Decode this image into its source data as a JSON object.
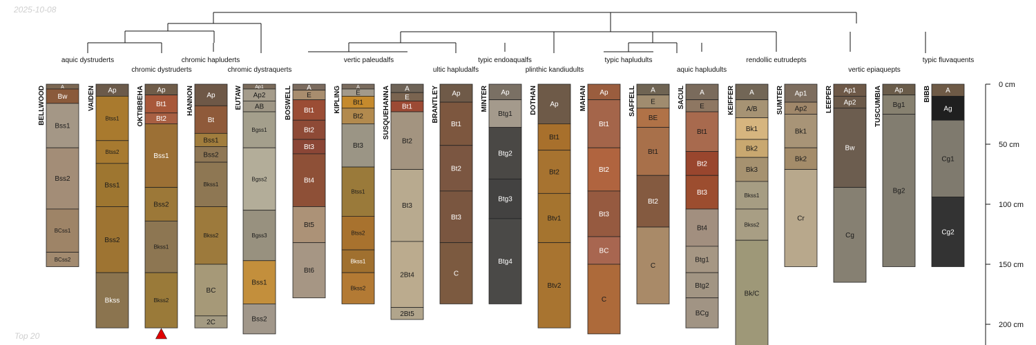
{
  "date_label": "2025-10-08",
  "footer_label": "Top 20",
  "depth_axis": {
    "ticks": [
      0,
      50,
      100,
      150,
      200
    ],
    "unit": "cm",
    "max_depth": 218
  },
  "chart_data": {
    "type": "soil-profile-sketch",
    "profiles": [
      {
        "name": "BELLWOOD",
        "horizons": [
          {
            "name": "A",
            "top": 0,
            "bottom": 4,
            "color": "#7b6752"
          },
          {
            "name": "Bw",
            "top": 4,
            "bottom": 16,
            "color": "#8a5a3b"
          },
          {
            "name": "Bss1",
            "top": 16,
            "bottom": 53,
            "color": "#a49786"
          },
          {
            "name": "Bss2",
            "top": 53,
            "bottom": 104,
            "color": "#a38d77"
          },
          {
            "name": "BCss1",
            "top": 104,
            "bottom": 140,
            "color": "#9e8467"
          },
          {
            "name": "BCss2",
            "top": 140,
            "bottom": 152,
            "color": "#a28a6f"
          }
        ]
      },
      {
        "name": "VAIDEN",
        "horizons": [
          {
            "name": "Ap",
            "top": 0,
            "bottom": 10,
            "color": "#6b5a4a"
          },
          {
            "name": "Btss1",
            "top": 10,
            "bottom": 47,
            "color": "#a97a2e"
          },
          {
            "name": "Btss2",
            "top": 47,
            "bottom": 66,
            "color": "#a77a30"
          },
          {
            "name": "Bss1",
            "top": 66,
            "bottom": 102,
            "color": "#9e7630"
          },
          {
            "name": "Bss2",
            "top": 102,
            "bottom": 157,
            "color": "#9e7432"
          },
          {
            "name": "Bkss",
            "top": 157,
            "bottom": 203,
            "color": "#8b744f"
          }
        ]
      },
      {
        "name": "OKTIBBEHA",
        "horizons": [
          {
            "name": "Ap",
            "top": 0,
            "bottom": 9,
            "color": "#6f5c49"
          },
          {
            "name": "Bt1",
            "top": 9,
            "bottom": 24,
            "color": "#a8583a"
          },
          {
            "name": "Bt2",
            "top": 24,
            "bottom": 33,
            "color": "#a85f42"
          },
          {
            "name": "Bss1",
            "top": 33,
            "bottom": 86,
            "color": "#9c7035"
          },
          {
            "name": "Bss2",
            "top": 86,
            "bottom": 114,
            "color": "#9c7838"
          },
          {
            "name": "Bkss1",
            "top": 114,
            "bottom": 157,
            "color": "#8d7652"
          },
          {
            "name": "Bkss2",
            "top": 157,
            "bottom": 203,
            "color": "#9a7a39"
          }
        ]
      },
      {
        "name": "HANNON",
        "horizons": [
          {
            "name": "Ap",
            "top": 0,
            "bottom": 18,
            "color": "#6e5847"
          },
          {
            "name": "Bt",
            "top": 18,
            "bottom": 41,
            "color": "#8f5a3a"
          },
          {
            "name": "Bss1",
            "top": 41,
            "bottom": 52,
            "color": "#a17d3d"
          },
          {
            "name": "Bss2",
            "top": 52,
            "bottom": 65,
            "color": "#8f7755"
          },
          {
            "name": "Bkss1",
            "top": 65,
            "bottom": 102,
            "color": "#8e7753"
          },
          {
            "name": "Bkss2",
            "top": 102,
            "bottom": 150,
            "color": "#9d7a3c"
          },
          {
            "name": "BC",
            "top": 150,
            "bottom": 193,
            "color": "#a69978"
          },
          {
            "name": "2C",
            "top": 193,
            "bottom": 203,
            "color": "#a39a82"
          }
        ]
      },
      {
        "name": "EUTAW",
        "horizons": [
          {
            "name": "Ap1",
            "top": 0,
            "bottom": 4,
            "color": "#7a6b5b"
          },
          {
            "name": "Ap2",
            "top": 4,
            "bottom": 14,
            "color": "#a59c8b"
          },
          {
            "name": "AB",
            "top": 14,
            "bottom": 23,
            "color": "#9f9786"
          },
          {
            "name": "Bgss1",
            "top": 23,
            "bottom": 53,
            "color": "#a49f8c"
          },
          {
            "name": "Bgss2",
            "top": 53,
            "bottom": 105,
            "color": "#b3ad99"
          },
          {
            "name": "Bgss3",
            "top": 105,
            "bottom": 147,
            "color": "#98917f"
          },
          {
            "name": "Bss1",
            "top": 147,
            "bottom": 183,
            "color": "#c38f3c"
          },
          {
            "name": "Bss2",
            "top": 183,
            "bottom": 208,
            "color": "#a1978a"
          }
        ]
      },
      {
        "name": "BOSWELL",
        "horizons": [
          {
            "name": "A",
            "top": 0,
            "bottom": 5,
            "color": "#7b6b5e"
          },
          {
            "name": "E",
            "top": 5,
            "bottom": 13,
            "color": "#a88d6e"
          },
          {
            "name": "Bt1",
            "top": 13,
            "bottom": 30,
            "color": "#9b4d35"
          },
          {
            "name": "Bt2",
            "top": 30,
            "bottom": 46,
            "color": "#8e4a36"
          },
          {
            "name": "Bt3",
            "top": 46,
            "bottom": 58,
            "color": "#8b4636"
          },
          {
            "name": "Bt4",
            "top": 58,
            "bottom": 102,
            "color": "#8e5037"
          },
          {
            "name": "Bt5",
            "top": 102,
            "bottom": 132,
            "color": "#ac9277"
          },
          {
            "name": "Bt6",
            "top": 132,
            "bottom": 178,
            "color": "#a69684"
          }
        ]
      },
      {
        "name": "KIPLING",
        "horizons": [
          {
            "name": "A",
            "top": 0,
            "bottom": 4,
            "color": "#7a6c5e"
          },
          {
            "name": "E",
            "top": 4,
            "bottom": 10,
            "color": "#a39a8b"
          },
          {
            "name": "Bt1",
            "top": 10,
            "bottom": 20,
            "color": "#c58a2d"
          },
          {
            "name": "Bt2",
            "top": 20,
            "bottom": 33,
            "color": "#b28a4e"
          },
          {
            "name": "Bt3",
            "top": 33,
            "bottom": 69,
            "color": "#9b9585"
          },
          {
            "name": "Btss1",
            "top": 69,
            "bottom": 110,
            "color": "#9a7a3a"
          },
          {
            "name": "Btss2",
            "top": 110,
            "bottom": 138,
            "color": "#a8722e"
          },
          {
            "name": "Bkss1",
            "top": 138,
            "bottom": 157,
            "color": "#a0702f"
          },
          {
            "name": "Bkss2",
            "top": 157,
            "bottom": 183,
            "color": "#b37a34"
          }
        ]
      },
      {
        "name": "SUSQUEHANNA",
        "horizons": [
          {
            "name": "A",
            "top": 0,
            "bottom": 7,
            "color": "#6e6357"
          },
          {
            "name": "E",
            "top": 7,
            "bottom": 14,
            "color": "#7a6450"
          },
          {
            "name": "Bt1",
            "top": 14,
            "bottom": 23,
            "color": "#9c4a34"
          },
          {
            "name": "Bt2",
            "top": 23,
            "bottom": 71,
            "color": "#a39480"
          },
          {
            "name": "Bt3",
            "top": 71,
            "bottom": 131,
            "color": "#b8aa8f"
          },
          {
            "name": "2Bt4",
            "top": 131,
            "bottom": 186,
            "color": "#bbab8e"
          },
          {
            "name": "2Bt5",
            "top": 186,
            "bottom": 196,
            "color": "#b1a58c"
          }
        ]
      },
      {
        "name": "BRANTLEY",
        "horizons": [
          {
            "name": "Ap",
            "top": 0,
            "bottom": 15,
            "color": "#6f5a48"
          },
          {
            "name": "Bt1",
            "top": 15,
            "bottom": 51,
            "color": "#7d573f"
          },
          {
            "name": "Bt2",
            "top": 51,
            "bottom": 89,
            "color": "#7b5641"
          },
          {
            "name": "Bt3",
            "top": 89,
            "bottom": 132,
            "color": "#7a5640"
          },
          {
            "name": "C",
            "top": 132,
            "bottom": 183,
            "color": "#7c5a40"
          }
        ]
      },
      {
        "name": "MINTER",
        "horizons": [
          {
            "name": "Ap",
            "top": 0,
            "bottom": 13,
            "color": "#7a7064"
          },
          {
            "name": "Btg1",
            "top": 13,
            "bottom": 36,
            "color": "#a49a8c"
          },
          {
            "name": "Btg2",
            "top": 36,
            "bottom": 79,
            "color": "#4a4845"
          },
          {
            "name": "Btg3",
            "top": 79,
            "bottom": 112,
            "color": "#434241"
          },
          {
            "name": "Btg4",
            "top": 112,
            "bottom": 183,
            "color": "#4a4947"
          }
        ]
      },
      {
        "name": "DOTHAN",
        "horizons": [
          {
            "name": "Ap",
            "top": 0,
            "bottom": 33,
            "color": "#6e5a48"
          },
          {
            "name": "Bt1",
            "top": 33,
            "bottom": 55,
            "color": "#a8702c"
          },
          {
            "name": "Bt2",
            "top": 55,
            "bottom": 91,
            "color": "#a77330"
          },
          {
            "name": "Btv1",
            "top": 91,
            "bottom": 132,
            "color": "#a5742f"
          },
          {
            "name": "Btv2",
            "top": 132,
            "bottom": 203,
            "color": "#a87430"
          }
        ]
      },
      {
        "name": "MAHAN",
        "horizons": [
          {
            "name": "Ap",
            "top": 0,
            "bottom": 13,
            "color": "#9a5d3e"
          },
          {
            "name": "Bt1",
            "top": 13,
            "bottom": 53,
            "color": "#a4654a"
          },
          {
            "name": "Bt2",
            "top": 53,
            "bottom": 89,
            "color": "#b0643f"
          },
          {
            "name": "Bt3",
            "top": 89,
            "bottom": 127,
            "color": "#965a40"
          },
          {
            "name": "BC",
            "top": 127,
            "bottom": 150,
            "color": "#a86650"
          },
          {
            "name": "C",
            "top": 150,
            "bottom": 208,
            "color": "#ad6a3a"
          }
        ]
      },
      {
        "name": "SAFFELL",
        "horizons": [
          {
            "name": "A",
            "top": 0,
            "bottom": 9,
            "color": "#6f6453"
          },
          {
            "name": "E",
            "top": 9,
            "bottom": 20,
            "color": "#a08c6f"
          },
          {
            "name": "BE",
            "top": 20,
            "bottom": 36,
            "color": "#b07247"
          },
          {
            "name": "Bt1",
            "top": 36,
            "bottom": 76,
            "color": "#a8704a"
          },
          {
            "name": "Bt2",
            "top": 76,
            "bottom": 119,
            "color": "#845a40"
          },
          {
            "name": "C",
            "top": 119,
            "bottom": 183,
            "color": "#a98a68"
          }
        ]
      },
      {
        "name": "SACUL",
        "horizons": [
          {
            "name": "A",
            "top": 0,
            "bottom": 13,
            "color": "#7a6b5c"
          },
          {
            "name": "E",
            "top": 13,
            "bottom": 23,
            "color": "#8e7762"
          },
          {
            "name": "Bt1",
            "top": 23,
            "bottom": 56,
            "color": "#a86a4e"
          },
          {
            "name": "Bt2",
            "top": 56,
            "bottom": 76,
            "color": "#99462e"
          },
          {
            "name": "Bt3",
            "top": 76,
            "bottom": 104,
            "color": "#9c4d2f"
          },
          {
            "name": "Bt4",
            "top": 104,
            "bottom": 135,
            "color": "#a28f7f"
          },
          {
            "name": "Btg1",
            "top": 135,
            "bottom": 157,
            "color": "#a69784"
          },
          {
            "name": "Btg2",
            "top": 157,
            "bottom": 178,
            "color": "#a29583"
          },
          {
            "name": "BCg",
            "top": 178,
            "bottom": 203,
            "color": "#a19484"
          }
        ]
      },
      {
        "name": "KEIFFER",
        "horizons": [
          {
            "name": "A",
            "top": 0,
            "bottom": 13,
            "color": "#726656"
          },
          {
            "name": "A/B",
            "top": 13,
            "bottom": 28,
            "color": "#a69374"
          },
          {
            "name": "Bk1",
            "top": 28,
            "bottom": 46,
            "color": "#d6b57f"
          },
          {
            "name": "Bk2",
            "top": 46,
            "bottom": 61,
            "color": "#c9a870"
          },
          {
            "name": "Bk3",
            "top": 61,
            "bottom": 81,
            "color": "#a69270"
          },
          {
            "name": "Bkss1",
            "top": 81,
            "bottom": 104,
            "color": "#a69d83"
          },
          {
            "name": "Bkss2",
            "top": 104,
            "bottom": 130,
            "color": "#a89e84"
          },
          {
            "name": "Bk/C",
            "top": 130,
            "bottom": 218,
            "color": "#9e9878"
          }
        ]
      },
      {
        "name": "SUMTER",
        "horizons": [
          {
            "name": "Ap1",
            "top": 0,
            "bottom": 15,
            "color": "#7d6d5e"
          },
          {
            "name": "Ap2",
            "top": 15,
            "bottom": 25,
            "color": "#a0876a"
          },
          {
            "name": "Bk1",
            "top": 25,
            "bottom": 53,
            "color": "#a89477"
          },
          {
            "name": "Bk2",
            "top": 53,
            "bottom": 71,
            "color": "#a48c6a"
          },
          {
            "name": "Cr",
            "top": 71,
            "bottom": 152,
            "color": "#b8a88c"
          }
        ]
      },
      {
        "name": "LEEPER",
        "horizons": [
          {
            "name": "Ap1",
            "top": 0,
            "bottom": 10,
            "color": "#6e5948"
          },
          {
            "name": "Ap2",
            "top": 10,
            "bottom": 20,
            "color": "#6c5a4a"
          },
          {
            "name": "Bw",
            "top": 20,
            "bottom": 86,
            "color": "#6c5d4f"
          },
          {
            "name": "Cg",
            "top": 86,
            "bottom": 165,
            "color": "#868072"
          }
        ]
      },
      {
        "name": "TUSCUMBIA",
        "horizons": [
          {
            "name": "Ap",
            "top": 0,
            "bottom": 9,
            "color": "#6a5c4a"
          },
          {
            "name": "Bg1",
            "top": 9,
            "bottom": 25,
            "color": "#878170"
          },
          {
            "name": "Bg2",
            "top": 25,
            "bottom": 152,
            "color": "#827d70"
          }
        ]
      },
      {
        "name": "BIBB",
        "horizons": [
          {
            "name": "A",
            "top": 0,
            "bottom": 10,
            "color": "#6e5a46"
          },
          {
            "name": "Ag",
            "top": 10,
            "bottom": 30,
            "color": "#1f1f1f"
          },
          {
            "name": "Cg1",
            "top": 30,
            "bottom": 94,
            "color": "#7f7a6e"
          },
          {
            "name": "Cg2",
            "top": 94,
            "bottom": 152,
            "color": "#333333"
          }
        ]
      }
    ],
    "taxa": [
      {
        "label": "aquic dystruderts",
        "row": 1
      },
      {
        "label": "chromic dystruderts",
        "row": 2
      },
      {
        "label": "chromic hapluderts",
        "row": 1
      },
      {
        "label": "chromic dystraquerts",
        "row": 2
      },
      {
        "label": "vertic paleudalfs",
        "row": 1
      },
      {
        "label": "ultic hapludalfs",
        "row": 2
      },
      {
        "label": "typic endoaqualfs",
        "row": 1
      },
      {
        "label": "plinthic kandiudults",
        "row": 2
      },
      {
        "label": "typic hapludults",
        "row": 1
      },
      {
        "label": "aquic hapludults",
        "row": 2
      },
      {
        "label": "rendollic eutrudepts",
        "row": 1
      },
      {
        "label": "vertic epiaquepts",
        "row": 2
      },
      {
        "label": "typic fluvaquents",
        "row": 1
      }
    ],
    "marker": {
      "profile": "OKTIBBEHA",
      "shape": "triangle",
      "color": "#e00000"
    }
  }
}
